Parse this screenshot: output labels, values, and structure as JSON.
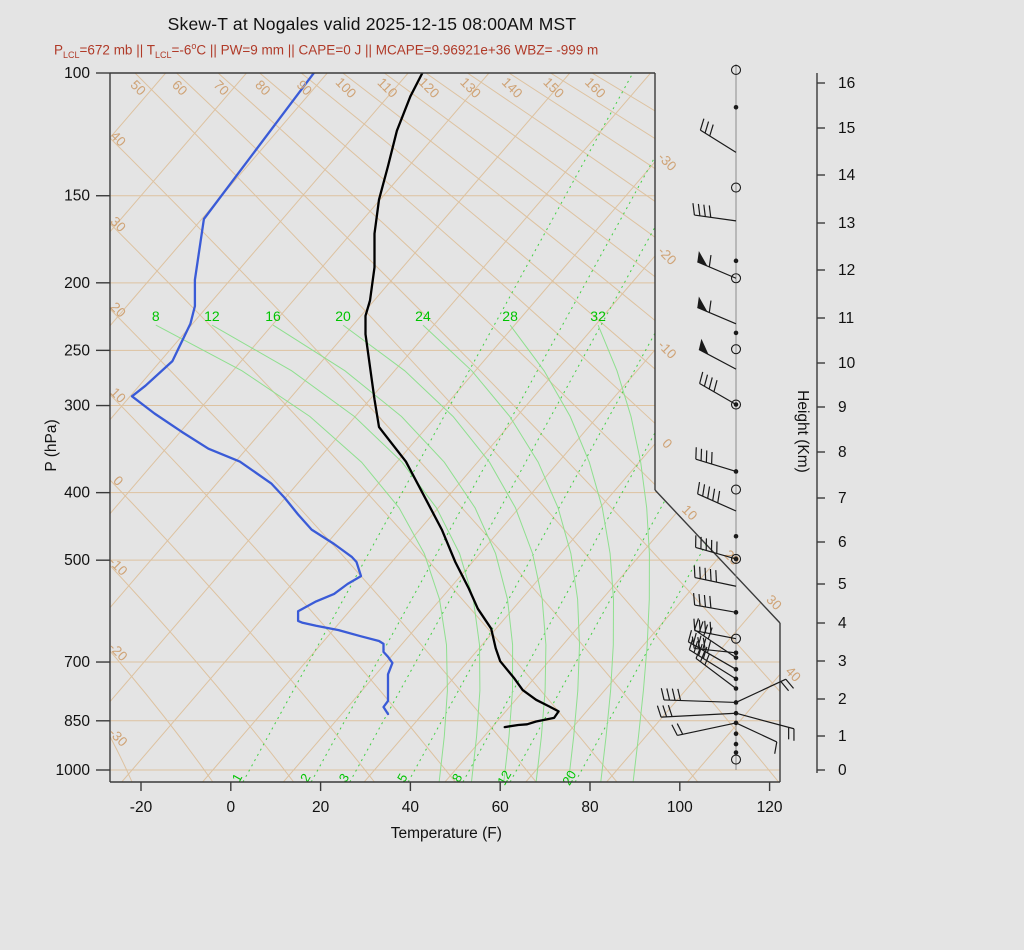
{
  "header": {
    "title": "Skew-T at Nogales valid 2025-12-15 08:00AM MST"
  },
  "subtitle_segments": [
    {
      "type": "text",
      "t": "P"
    },
    {
      "type": "sub",
      "t": "LCL"
    },
    {
      "type": "text",
      "t": "=672 mb || T"
    },
    {
      "type": "sub",
      "t": "LCL"
    },
    {
      "type": "text",
      "t": "=-6"
    },
    {
      "type": "sup",
      "t": "o"
    },
    {
      "type": "text",
      "t": "C || PW=9 mm || CAPE=0 J || MCAPE=9.96921e+36 WBZ= -999 m"
    }
  ],
  "chart_data": {
    "type": "skewt",
    "title": "Skew-T at Nogales valid 2025-12-15 08:00AM MST",
    "station": "Nogales",
    "valid_time": "2025-12-15 08:00AM MST",
    "parameters": {
      "P_LCL_mb": 672,
      "T_LCL_C": -6,
      "PW_mm": 9,
      "CAPE_J": 0,
      "MCAPE": "9.96921e+36",
      "WBZ_m": -999
    },
    "axes": {
      "pressure": {
        "label": "P (hPa)",
        "ticks": [
          100,
          150,
          200,
          250,
          300,
          400,
          500,
          700,
          850,
          1000
        ],
        "scale": "log"
      },
      "temperature": {
        "label": "Temperature (F)",
        "ticks": [
          -20,
          0,
          20,
          40,
          60,
          80,
          100,
          120
        ]
      },
      "height": {
        "label": "Height (Km)",
        "ticks": [
          0,
          1,
          2,
          3,
          4,
          5,
          6,
          7,
          8,
          9,
          10,
          11,
          12,
          13,
          14,
          15,
          16
        ]
      }
    },
    "isotherms": {
      "unit": "C",
      "step": 10,
      "min": -110,
      "max": 40,
      "edge_label_values": [
        -30,
        -20,
        -10,
        0,
        10,
        20,
        30,
        40
      ]
    },
    "dry_adiabats": {
      "unit": "C",
      "left_label_values": [
        40,
        30,
        20,
        10,
        0,
        -10,
        -20,
        -30
      ],
      "top_label_values": [
        50,
        60,
        70,
        80,
        90,
        100,
        110,
        120,
        130,
        140,
        150,
        160
      ]
    },
    "mixing_ratio_lines": {
      "unit": "g/kg",
      "labels": [
        1,
        2,
        3,
        5,
        8,
        12,
        20
      ],
      "anchor_temp_f": [
        2.7,
        17.9,
        26.5,
        39.5,
        51.7,
        62.2,
        76.7
      ]
    },
    "moist_adiabats": {
      "unit": "C",
      "labels": [
        8,
        12,
        16,
        20,
        24,
        28,
        32
      ],
      "anchor_temp_f": [
        46.4,
        53.6,
        60.8,
        68.0,
        75.2,
        82.4,
        89.6
      ],
      "label_temp_f": [
        -16.7,
        -4.2,
        9.4,
        25.0,
        42.8,
        62.2,
        81.8
      ],
      "label_pressure": 224
    },
    "temperature_profile": [
      [
        99,
        43
      ],
      [
        108,
        40
      ],
      [
        121,
        37
      ],
      [
        136,
        35
      ],
      [
        152,
        33
      ],
      [
        170,
        32
      ],
      [
        190,
        32
      ],
      [
        212,
        31
      ],
      [
        223,
        30
      ],
      [
        237,
        30
      ],
      [
        264,
        31
      ],
      [
        294,
        32
      ],
      [
        322,
        33
      ],
      [
        361,
        39
      ],
      [
        404,
        43
      ],
      [
        452,
        47
      ],
      [
        503,
        50
      ],
      [
        549,
        53
      ],
      [
        587,
        55
      ],
      [
        627,
        58
      ],
      [
        669,
        59
      ],
      [
        698,
        60
      ],
      [
        737,
        63
      ],
      [
        768,
        65
      ],
      [
        793,
        68
      ],
      [
        811,
        71
      ],
      [
        824,
        73
      ],
      [
        842,
        72
      ],
      [
        852,
        68
      ],
      [
        860,
        66
      ],
      [
        862,
        64
      ],
      [
        868,
        61
      ]
    ],
    "dewpoint_profile": [
      [
        99,
        19
      ],
      [
        162,
        -6
      ],
      [
        198,
        -8
      ],
      [
        216,
        -8
      ],
      [
        229,
        -9
      ],
      [
        259,
        -13
      ],
      [
        281,
        -19
      ],
      [
        291,
        -22
      ],
      [
        308,
        -17
      ],
      [
        327,
        -11
      ],
      [
        346,
        -5
      ],
      [
        361,
        2
      ],
      [
        388,
        9
      ],
      [
        407,
        12
      ],
      [
        430,
        15
      ],
      [
        452,
        18
      ],
      [
        474,
        23
      ],
      [
        495,
        27
      ],
      [
        503,
        28
      ],
      [
        527,
        29
      ],
      [
        541,
        26
      ],
      [
        559,
        23
      ],
      [
        573,
        19
      ],
      [
        592,
        15
      ],
      [
        611,
        15
      ],
      [
        615,
        16
      ],
      [
        621,
        19
      ],
      [
        630,
        24
      ],
      [
        643,
        29
      ],
      [
        653,
        33
      ],
      [
        659,
        34
      ],
      [
        677,
        34
      ],
      [
        688,
        35
      ],
      [
        702,
        36
      ],
      [
        729,
        35
      ],
      [
        750,
        35
      ],
      [
        764,
        35
      ],
      [
        779,
        35
      ],
      [
        796,
        35
      ],
      [
        812,
        34
      ],
      [
        831,
        35
      ]
    ],
    "wind_barbs": [
      {
        "p": 99,
        "marker": "circle"
      },
      {
        "p": 112,
        "marker": "dot"
      },
      {
        "p": 130,
        "marker": "none",
        "dir": 148,
        "ticks": [
          "f",
          "f",
          "f"
        ]
      },
      {
        "p": 146,
        "marker": "circle"
      },
      {
        "p": 163,
        "marker": "none",
        "dir": 172,
        "ticks": [
          "f",
          "f",
          "f",
          "f"
        ]
      },
      {
        "p": 186,
        "marker": "dot"
      },
      {
        "p": 197,
        "marker": "circle",
        "dir": 157,
        "ticks": [
          "p",
          "f"
        ]
      },
      {
        "p": 229,
        "marker": "none",
        "dir": 157,
        "ticks": [
          "p",
          "f"
        ]
      },
      {
        "p": 236,
        "marker": "dot"
      },
      {
        "p": 249,
        "marker": "circle"
      },
      {
        "p": 266,
        "marker": "none",
        "dir": 152,
        "ticks": [
          "p"
        ]
      },
      {
        "p": 299,
        "marker": "odot",
        "dir": 150,
        "ticks": [
          "f",
          "f",
          "f",
          "f"
        ]
      },
      {
        "p": 373,
        "marker": "dot",
        "dir": 163,
        "ticks": [
          "f",
          "f",
          "f",
          "f"
        ]
      },
      {
        "p": 396,
        "marker": "circle"
      },
      {
        "p": 425,
        "marker": "none",
        "dir": 156,
        "ticks": [
          "f",
          "f",
          "f",
          "f",
          "f"
        ]
      },
      {
        "p": 462,
        "marker": "dot"
      },
      {
        "p": 498,
        "marker": "odot",
        "dir": 164,
        "ticks": [
          "f",
          "f",
          "f",
          "f",
          "f"
        ]
      },
      {
        "p": 545,
        "marker": "none",
        "dir": 168,
        "ticks": [
          "f",
          "f",
          "f",
          "f",
          "f"
        ]
      },
      {
        "p": 594,
        "marker": "dot",
        "dir": 170,
        "ticks": [
          "f",
          "f",
          "f",
          "f"
        ]
      },
      {
        "p": 648,
        "marker": "circle",
        "dir": 169,
        "ticks": [
          "f",
          "f",
          "f",
          "f"
        ]
      },
      {
        "p": 679,
        "marker": "dot",
        "dir": 174,
        "ticks": [
          "f",
          "f",
          "f"
        ]
      },
      {
        "p": 690,
        "marker": "dot",
        "dir": 146,
        "ticks": [
          "f",
          "f",
          "f",
          "f"
        ],
        "len": 50
      },
      {
        "p": 717,
        "marker": "dot",
        "dir": 150,
        "ticks": [
          "f",
          "f",
          "f",
          "f",
          "f"
        ],
        "len": 55
      },
      {
        "p": 740,
        "marker": "dot",
        "dir": 148,
        "ticks": [
          "f",
          "f",
          "f",
          "f"
        ],
        "len": 55
      },
      {
        "p": 764,
        "marker": "dot",
        "dir": 143,
        "ticks": [
          "f",
          "f",
          "f"
        ],
        "len": 50
      },
      {
        "p": 800,
        "marker": "dot",
        "dir": 178,
        "ticks": [
          "f",
          "f",
          "f",
          "f"
        ],
        "len": 72
      },
      {
        "p": 800,
        "marker": "none",
        "dir": 25,
        "ticks": [
          "f",
          "f"
        ],
        "len": 55
      },
      {
        "p": 829,
        "marker": "dot",
        "dir": 183,
        "ticks": [
          "f",
          "f",
          "f"
        ],
        "len": 75
      },
      {
        "p": 829,
        "marker": "none",
        "dir": 345,
        "ticks": [
          "f",
          "f"
        ],
        "len": 60
      },
      {
        "p": 856,
        "marker": "dot",
        "dir": 192,
        "ticks": [
          "f",
          "f"
        ],
        "len": 60
      },
      {
        "p": 856,
        "marker": "none",
        "dir": 335,
        "ticks": [
          "f"
        ],
        "len": 45
      },
      {
        "p": 887,
        "marker": "dot"
      },
      {
        "p": 918,
        "marker": "dot"
      },
      {
        "p": 944,
        "marker": "dot"
      },
      {
        "p": 966,
        "marker": "circle"
      }
    ],
    "colors": {
      "background": "#e4e4e4",
      "frame": "#3a3a3a",
      "tan_line": "#ddc2a0",
      "tan_label": "#cfa376",
      "green_line_dashed": "#44cf44",
      "green_line_solid": "#8fdf8f",
      "green_label": "#00c400",
      "temperature_curve": "#000000",
      "dewpoint_curve": "#3a5bd7",
      "barb": "#1a1a1a",
      "subtitle": "#b03a28",
      "axis_text": "#111111"
    },
    "legend": null,
    "grid": true
  }
}
